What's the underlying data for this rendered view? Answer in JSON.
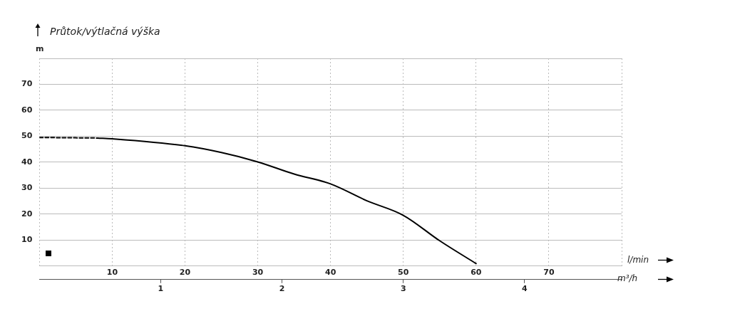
{
  "chart_data": {
    "type": "line",
    "title": "Průtok/výtlačná výška",
    "ylabel": "m",
    "xlabel": "l/min",
    "x2label": "m³/h",
    "xlim": [
      0,
      80
    ],
    "xticks": [
      {
        "value": 0,
        "label": null
      },
      10,
      20,
      30,
      40,
      50,
      60,
      70,
      {
        "value": 80,
        "label": null
      }
    ],
    "ylim": [
      0,
      80
    ],
    "yticks": [
      {
        "value": 0,
        "label": null
      },
      10,
      20,
      30,
      40,
      50,
      60,
      70,
      {
        "value": 80,
        "label": null
      }
    ],
    "x2lim": [
      0,
      4.8
    ],
    "x2ticks": [
      1,
      2,
      3,
      4
    ],
    "grid": true,
    "legend": false,
    "marker": "none",
    "series": [
      {
        "color": "#000000",
        "line_style": "dashed",
        "x": [
          0,
          8
        ],
        "values": [
          49.5,
          49.3
        ]
      },
      {
        "color": "#000000",
        "line_style": "solid",
        "x": [
          8,
          10,
          20,
          25,
          30,
          35,
          40,
          45,
          50,
          55,
          60
        ],
        "values": [
          49.3,
          49,
          46.3,
          43.7,
          40.1,
          35.4,
          31.6,
          25.1,
          19.5,
          9.7,
          0.9
        ]
      }
    ]
  }
}
